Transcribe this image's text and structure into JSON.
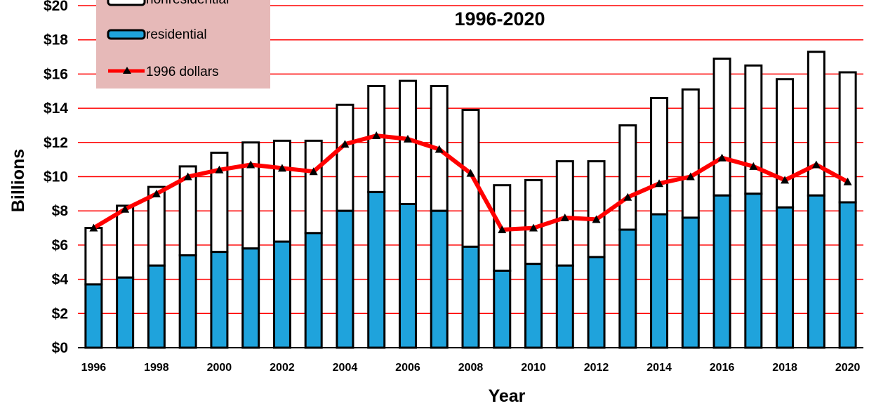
{
  "chart_data": {
    "type": "bar",
    "title": "1996-2020",
    "xlabel": "Year",
    "ylabel": "Billions",
    "ylim": [
      0,
      20
    ],
    "ytick_labels": [
      "$0",
      "$2",
      "$4",
      "$6",
      "$8",
      "$10",
      "$12",
      "$14",
      "$16",
      "$18",
      "$20"
    ],
    "x": [
      1996,
      1997,
      1998,
      1999,
      2000,
      2001,
      2002,
      2003,
      2004,
      2005,
      2006,
      2007,
      2008,
      2009,
      2010,
      2011,
      2012,
      2013,
      2014,
      2015,
      2016,
      2017,
      2018,
      2019,
      2020
    ],
    "xtick_labels": [
      "1996",
      "1998",
      "2000",
      "2002",
      "2004",
      "2006",
      "2008",
      "2010",
      "2012",
      "2014",
      "2016",
      "2018",
      "2020"
    ],
    "stacked": true,
    "legend_position": "top-left",
    "grid": true,
    "series": [
      {
        "name": "residential",
        "kind": "bar",
        "color": "#1fa3dc",
        "values": [
          3.7,
          4.1,
          4.8,
          5.4,
          5.6,
          5.8,
          6.2,
          6.7,
          8.0,
          9.1,
          8.4,
          8.0,
          5.9,
          4.5,
          4.9,
          4.8,
          5.3,
          6.9,
          7.8,
          7.6,
          8.9,
          9.0,
          8.2,
          8.9,
          8.5
        ]
      },
      {
        "name": "nonresidential",
        "kind": "bar",
        "color": "#ffffff",
        "values": [
          3.3,
          4.2,
          4.6,
          5.2,
          5.8,
          6.2,
          5.9,
          5.4,
          6.2,
          6.2,
          7.2,
          7.3,
          8.0,
          5.0,
          4.9,
          6.1,
          5.6,
          6.1,
          6.8,
          7.5,
          8.0,
          7.5,
          7.5,
          8.4,
          7.6
        ]
      },
      {
        "name": "1996 dollars",
        "kind": "line",
        "color": "#ff0000",
        "values": [
          7.0,
          8.1,
          9.0,
          10.0,
          10.4,
          10.7,
          10.5,
          10.3,
          11.9,
          12.4,
          12.2,
          11.6,
          10.2,
          6.9,
          7.0,
          7.6,
          7.5,
          8.8,
          9.6,
          10.0,
          11.1,
          10.6,
          9.8,
          10.7,
          9.7
        ]
      }
    ]
  }
}
